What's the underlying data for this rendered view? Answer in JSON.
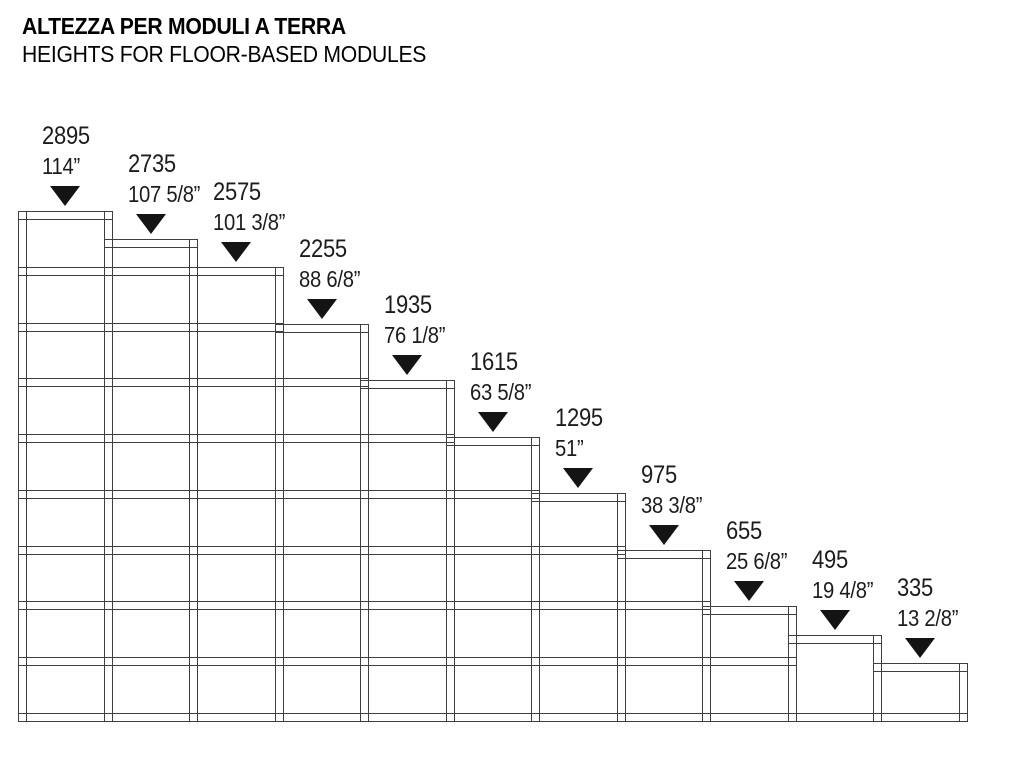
{
  "title": {
    "line1": "ALTEZZA PER MODULI A TERRA",
    "line2": "HEIGHTS FOR FLOOR-BASED MODULES"
  },
  "colors": {
    "line": "#3f3f3f",
    "text": "#1c1c1c",
    "marker": "#141414"
  },
  "diagram": {
    "description": "Staircase of 11 floor-based shelving modules of decreasing height, each marked with a downward triangle and labeled with height in millimetres and inches",
    "unit_mm_per_shelf_pitch": 320,
    "modules": [
      {
        "height_mm": "2895",
        "height_in": "114”"
      },
      {
        "height_mm": "2735",
        "height_in": "107 5/8”"
      },
      {
        "height_mm": "2575",
        "height_in": "101 3/8”"
      },
      {
        "height_mm": "2255",
        "height_in": "88 6/8”"
      },
      {
        "height_mm": "1935",
        "height_in": "76 1/8”"
      },
      {
        "height_mm": "1615",
        "height_in": "63 5/8”"
      },
      {
        "height_mm": "1295",
        "height_in": "51”"
      },
      {
        "height_mm": "975",
        "height_in": "38 3/8”"
      },
      {
        "height_mm": "655",
        "height_in": "25 6/8”"
      },
      {
        "height_mm": "495",
        "height_in": "19 4/8”"
      },
      {
        "height_mm": "335",
        "height_in": "13 2/8”"
      }
    ]
  }
}
